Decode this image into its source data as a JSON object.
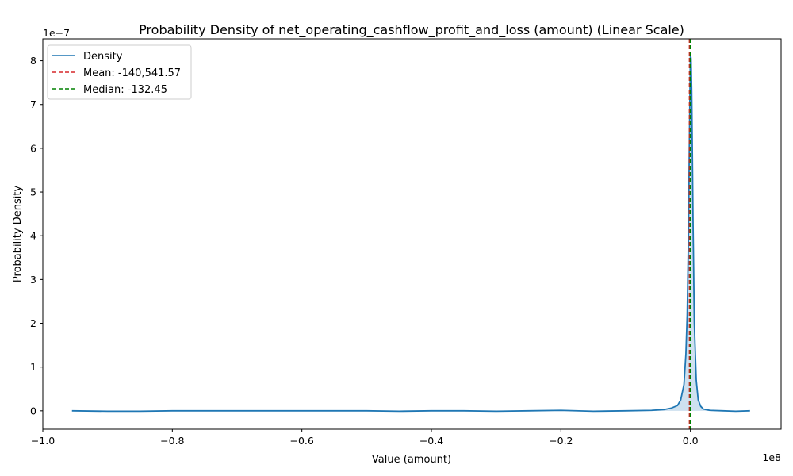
{
  "chart_data": {
    "type": "line",
    "title": "Probability Density of net_operating_cashflow_profit_and_loss (amount) (Linear Scale)",
    "xlabel": "Value (amount)",
    "ylabel": "Probability Density",
    "x_offset_label": "1e8",
    "y_offset_label": "1e−7",
    "x_scale": 100000000,
    "y_scale": 1e-07,
    "xlim": [
      -1.0,
      0.14
    ],
    "ylim": [
      -0.42,
      8.5
    ],
    "x_ticks": [
      -1.0,
      -0.8,
      -0.6,
      -0.4,
      -0.2,
      0.0
    ],
    "x_tick_labels": [
      "−1.0",
      "−0.8",
      "−0.6",
      "−0.4",
      "−0.2",
      "0.0"
    ],
    "y_ticks": [
      0,
      1,
      2,
      3,
      4,
      5,
      6,
      7,
      8
    ],
    "y_tick_labels": [
      "0",
      "1",
      "2",
      "3",
      "4",
      "5",
      "6",
      "7",
      "8"
    ],
    "grid": false,
    "legend_position": "top-left",
    "series": [
      {
        "name": "Density",
        "color": "#1f77b4",
        "x": [
          -0.955,
          -0.9,
          -0.85,
          -0.8,
          -0.75,
          -0.7,
          -0.65,
          -0.6,
          -0.55,
          -0.5,
          -0.45,
          -0.4,
          -0.35,
          -0.3,
          -0.25,
          -0.2,
          -0.15,
          -0.1,
          -0.06,
          -0.04,
          -0.03,
          -0.02,
          -0.015,
          -0.01,
          -0.007,
          -0.005,
          -0.003,
          -0.002,
          -0.001,
          0.0,
          0.001,
          0.002,
          0.003,
          0.004,
          0.006,
          0.009,
          0.012,
          0.016,
          0.02,
          0.03,
          0.05,
          0.07,
          0.092
        ],
        "y": [
          0.0,
          -0.01,
          -0.01,
          0.0,
          0.0,
          0.0,
          0.0,
          0.0,
          0.0,
          0.0,
          -0.01,
          0.0,
          0.0,
          -0.01,
          0.0,
          0.01,
          -0.01,
          0.0,
          0.01,
          0.03,
          0.06,
          0.12,
          0.25,
          0.6,
          1.3,
          2.2,
          4.0,
          5.6,
          7.0,
          8.15,
          8.05,
          7.3,
          5.9,
          4.4,
          2.0,
          0.7,
          0.25,
          0.1,
          0.04,
          0.01,
          0.0,
          -0.01,
          0.0
        ]
      }
    ],
    "vlines": [
      {
        "name": "Mean: -140,541.57",
        "x": -0.0014054157,
        "color": "#d62728"
      },
      {
        "name": "Median: -132.45",
        "x": -1.3245e-06,
        "color": "#008000"
      }
    ]
  }
}
